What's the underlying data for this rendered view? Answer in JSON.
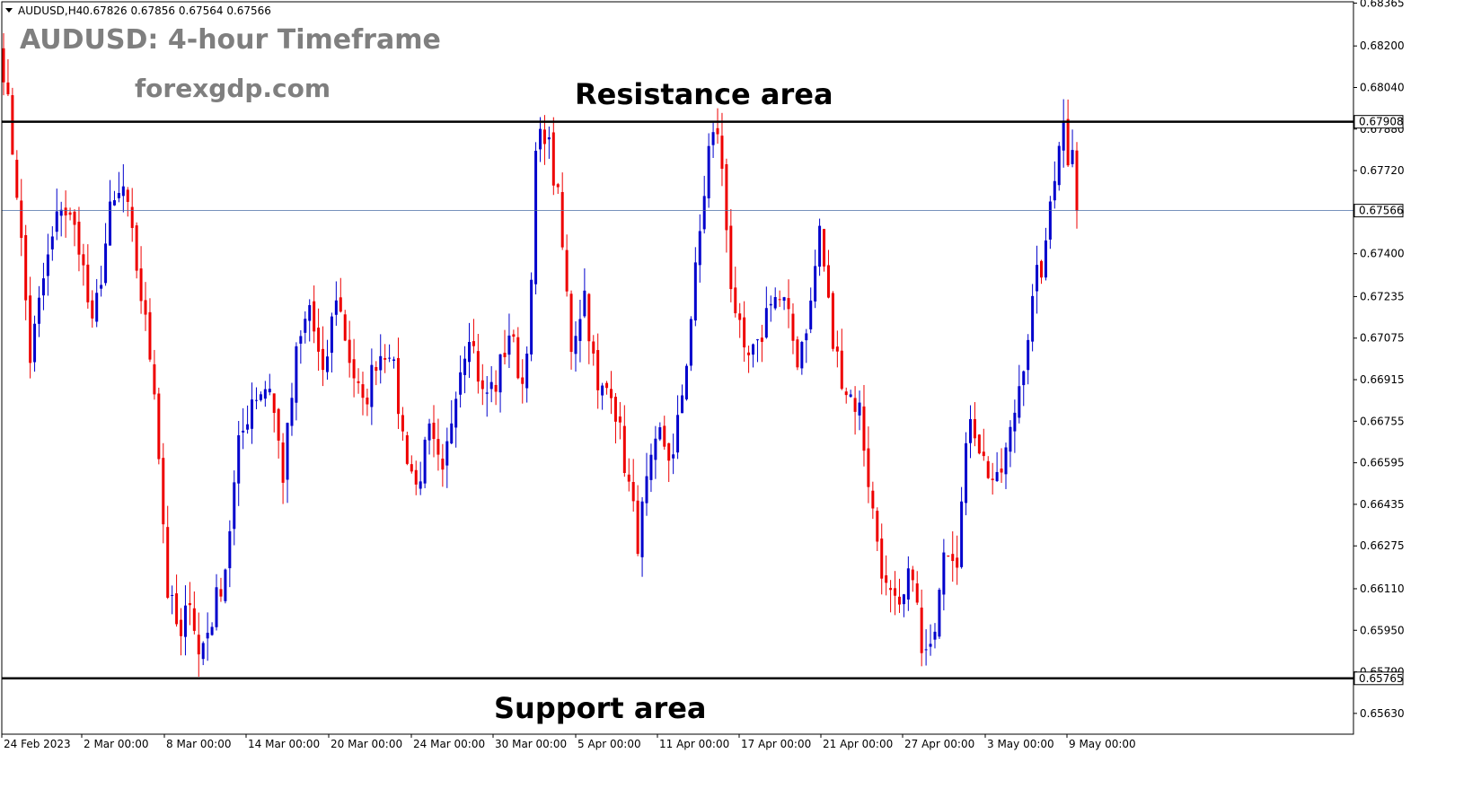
{
  "header": {
    "symbol_info": "AUDUSD,H4",
    "ohlc": "0.67826 0.67856 0.67564 0.67566"
  },
  "overlay": {
    "title": "AUDUSD: 4-hour Timeframe",
    "watermark": "forexgdp.com",
    "resistance_label": "Resistance area",
    "support_label": "Support area"
  },
  "colors": {
    "bull": "#0000cc",
    "bear": "#ee0000",
    "level_line": "#000000",
    "current_line": "#4a6fa5",
    "axis": "#000000"
  },
  "chart_data": {
    "type": "candlestick",
    "symbol": "AUDUSD",
    "timeframe": "H4",
    "y_ticks": [
      "0.68365",
      "0.68200",
      "0.68040",
      "0.67880",
      "0.67720",
      "0.67560",
      "0.67400",
      "0.67235",
      "0.67075",
      "0.66915",
      "0.66755",
      "0.66595",
      "0.66435",
      "0.66275",
      "0.66110",
      "0.65950",
      "0.65790",
      "0.65630"
    ],
    "x_ticks": [
      "24 Feb 2023",
      "2 Mar 00:00",
      "8 Mar 00:00",
      "14 Mar 00:00",
      "20 Mar 00:00",
      "24 Mar 00:00",
      "30 Mar 00:00",
      "5 Apr 00:00",
      "11 Apr 00:00",
      "17 Apr 00:00",
      "21 Apr 00:00",
      "27 Apr 00:00",
      "3 May 00:00",
      "9 May 00:00"
    ],
    "ylim": [
      0.6555,
      0.6837
    ],
    "levels": [
      {
        "name": "resistance",
        "price": 0.67908,
        "label": "0.67908"
      },
      {
        "name": "support",
        "price": 0.65765,
        "label": "0.65765"
      }
    ],
    "current_price": {
      "price": 0.67566,
      "label": "0.67566"
    },
    "anchors": [
      [
        0,
        0.6812
      ],
      [
        3,
        0.6765
      ],
      [
        6,
        0.67
      ],
      [
        9,
        0.673
      ],
      [
        13,
        0.676
      ],
      [
        17,
        0.6745
      ],
      [
        20,
        0.671
      ],
      [
        24,
        0.6755
      ],
      [
        27,
        0.6765
      ],
      [
        30,
        0.6735
      ],
      [
        34,
        0.669
      ],
      [
        37,
        0.661
      ],
      [
        40,
        0.659
      ],
      [
        42,
        0.661
      ],
      [
        44,
        0.6585
      ],
      [
        47,
        0.66
      ],
      [
        50,
        0.662
      ],
      [
        53,
        0.6665
      ],
      [
        56,
        0.6685
      ],
      [
        60,
        0.669
      ],
      [
        63,
        0.6655
      ],
      [
        66,
        0.67
      ],
      [
        69,
        0.672
      ],
      [
        72,
        0.669
      ],
      [
        75,
        0.6725
      ],
      [
        78,
        0.67
      ],
      [
        81,
        0.668
      ],
      [
        84,
        0.67
      ],
      [
        87,
        0.6705
      ],
      [
        90,
        0.667
      ],
      [
        93,
        0.665
      ],
      [
        96,
        0.667
      ],
      [
        99,
        0.6652
      ],
      [
        102,
        0.669
      ],
      [
        105,
        0.6712
      ],
      [
        108,
        0.6685
      ],
      [
        111,
        0.669
      ],
      [
        114,
        0.671
      ],
      [
        117,
        0.669
      ],
      [
        119,
        0.6725
      ],
      [
        120,
        0.6778
      ],
      [
        122,
        0.6788
      ],
      [
        123,
        0.678
      ],
      [
        125,
        0.676
      ],
      [
        128,
        0.6705
      ],
      [
        131,
        0.6725
      ],
      [
        134,
        0.6685
      ],
      [
        137,
        0.669
      ],
      [
        140,
        0.666
      ],
      [
        143,
        0.663
      ],
      [
        145,
        0.665
      ],
      [
        148,
        0.667
      ],
      [
        151,
        0.666
      ],
      [
        154,
        0.67
      ],
      [
        157,
        0.6748
      ],
      [
        159,
        0.678
      ],
      [
        161,
        0.6788
      ],
      [
        162,
        0.677
      ],
      [
        164,
        0.673
      ],
      [
        167,
        0.6698
      ],
      [
        170,
        0.6702
      ],
      [
        173,
        0.6725
      ],
      [
        176,
        0.672
      ],
      [
        179,
        0.67
      ],
      [
        182,
        0.672
      ],
      [
        184,
        0.675
      ],
      [
        187,
        0.6705
      ],
      [
        190,
        0.6688
      ],
      [
        193,
        0.668
      ],
      [
        196,
        0.664
      ],
      [
        199,
        0.661
      ],
      [
        202,
        0.66
      ],
      [
        205,
        0.662
      ],
      [
        207,
        0.6585
      ],
      [
        209,
        0.6585
      ],
      [
        212,
        0.663
      ],
      [
        215,
        0.6625
      ],
      [
        218,
        0.668
      ],
      [
        221,
        0.666
      ],
      [
        224,
        0.665
      ],
      [
        227,
        0.667
      ],
      [
        230,
        0.67
      ],
      [
        233,
        0.673
      ],
      [
        235,
        0.674
      ],
      [
        236,
        0.676
      ],
      [
        238,
        0.6785
      ],
      [
        239,
        0.679
      ],
      [
        240,
        0.6778
      ],
      [
        241,
        0.6785
      ],
      [
        242,
        0.67566
      ]
    ]
  }
}
